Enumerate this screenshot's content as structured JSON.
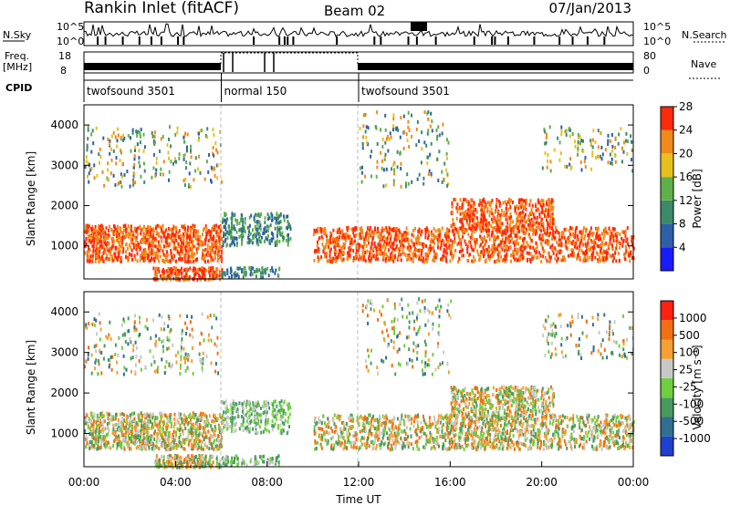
{
  "header": {
    "title": "Rankin Inlet (fitACF)",
    "beam": "Beam 02",
    "date": "07/Jan/2013"
  },
  "summary_panel": {
    "nsky_label": "N.Sky",
    "nsearch_label": "N.Search",
    "nsky_ticks": [
      "10^5",
      "10^0"
    ],
    "nsky_ticks_right": [
      "10^5",
      "10^0"
    ],
    "freq_label": "Freq.",
    "freq_unit": "[MHz]",
    "freq_ticks": [
      "18",
      "8"
    ],
    "nave_label": "Nave",
    "nave_ticks": [
      "80",
      "0"
    ],
    "cpid_label": "CPID",
    "cpid_segments": [
      {
        "name": "twofsound 3501",
        "start_hour": 0,
        "end_hour": 6
      },
      {
        "name": "normal 150",
        "start_hour": 6,
        "end_hour": 12
      },
      {
        "name": "twofsound 3501",
        "start_hour": 12,
        "end_hour": 24
      }
    ]
  },
  "chart_data": [
    {
      "type": "heatmap",
      "quantity": "Power",
      "ylabel": "Slant Range [km]",
      "xlabel": "",
      "xlim": [
        0,
        24
      ],
      "ylim": [
        180,
        4500
      ],
      "y_ticks": [
        1000,
        2000,
        3000,
        4000
      ],
      "colorbar": {
        "label": "Power [dB]",
        "ticks": [
          "4",
          "8",
          "12",
          "16",
          "20",
          "24",
          "28"
        ],
        "colors": [
          "#1a1aff",
          "#2e5fa8",
          "#3c8a6a",
          "#5fb04a",
          "#e8c01e",
          "#f08a1a",
          "#ff2a0a"
        ]
      },
      "features": [
        {
          "start_hour": 0,
          "end_hour": 6,
          "range_km": [
            700,
            1500
          ],
          "level_db": 28
        },
        {
          "start_hour": 6,
          "end_hour": 9,
          "range_km": [
            1100,
            1800
          ],
          "level_db": 14
        },
        {
          "start_hour": 10,
          "end_hour": 24,
          "range_km": [
            700,
            1500
          ],
          "level_db": 28
        },
        {
          "start_hour": 16,
          "end_hour": 20,
          "range_km": [
            1500,
            2200
          ],
          "level_db": 26
        }
      ]
    },
    {
      "type": "heatmap",
      "quantity": "Velocity",
      "ylabel": "Slant Range [km]",
      "xlabel": "Time UT",
      "xlim": [
        0,
        24
      ],
      "ylim": [
        180,
        4500
      ],
      "y_ticks": [
        1000,
        2000,
        3000,
        4000
      ],
      "x_ticks": [
        "00:00",
        "04:00",
        "08:00",
        "12:00",
        "16:00",
        "20:00",
        "00:00"
      ],
      "colorbar": {
        "label": "Velocity [m s^-1]",
        "ticks": [
          "1000",
          "500",
          "100",
          "25",
          "-25",
          "-100",
          "-500",
          "-1000"
        ],
        "colors": [
          "#1f3fcf",
          "#2f6f8f",
          "#4a9a60",
          "#6fcf3f",
          "#c8c8c8",
          "#f5a030",
          "#f07010",
          "#ff2010"
        ]
      },
      "features": [
        {
          "start_hour": 0,
          "end_hour": 6,
          "range_km": [
            700,
            1500
          ],
          "velocity_ms": 300
        },
        {
          "start_hour": 10,
          "end_hour": 24,
          "range_km": [
            700,
            1500
          ],
          "velocity_ms": -200
        },
        {
          "start_hour": 16,
          "end_hour": 20,
          "range_km": [
            1500,
            2200
          ],
          "velocity_ms": -300
        }
      ]
    }
  ]
}
